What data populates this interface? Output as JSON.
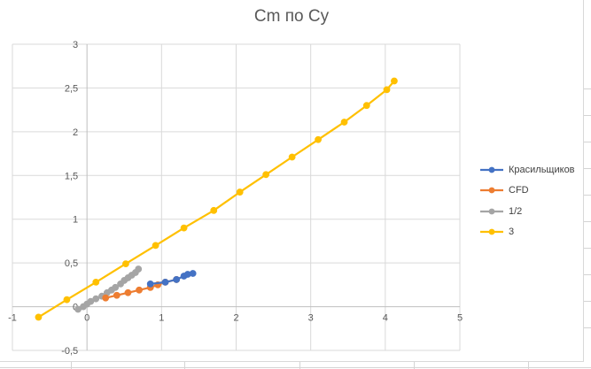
{
  "chart_data": {
    "type": "scatter",
    "title": "Cm по Cy",
    "xlabel": "",
    "ylabel": "",
    "xlim": [
      -1,
      5
    ],
    "ylim": [
      -0.5,
      3
    ],
    "x_ticks": [
      -1,
      0,
      1,
      2,
      3,
      4,
      5
    ],
    "y_ticks": [
      -0.5,
      0,
      0.5,
      1,
      1.5,
      2,
      2.5,
      3
    ],
    "x_tick_labels": [
      "-1",
      "0",
      "1",
      "2",
      "3",
      "4",
      "5"
    ],
    "y_tick_labels": [
      "-0,5",
      "0",
      "0,5",
      "1",
      "1,5",
      "2",
      "2,5",
      "3"
    ],
    "grid": true,
    "legend_position": "right",
    "series": [
      {
        "name": "Красильщиков",
        "color": "#4472c4",
        "x": [
          0.85,
          1.05,
          1.2,
          1.3,
          1.35,
          1.42
        ],
        "y": [
          0.26,
          0.28,
          0.31,
          0.35,
          0.37,
          0.38
        ]
      },
      {
        "name": "CFD",
        "color": "#ed7d31",
        "x": [
          0.25,
          0.4,
          0.55,
          0.7,
          0.85,
          0.95,
          1.05,
          1.2
        ],
        "y": [
          0.1,
          0.13,
          0.16,
          0.19,
          0.22,
          0.25,
          0.28,
          0.31
        ]
      },
      {
        "name": "1/2",
        "color": "#a5a5a5",
        "x": [
          -0.12,
          -0.05,
          0.0,
          0.05,
          0.12,
          0.2,
          0.27,
          0.33,
          0.38,
          0.45,
          0.5,
          0.55,
          0.6,
          0.65,
          0.69
        ],
        "y": [
          -0.03,
          0.0,
          0.03,
          0.06,
          0.09,
          0.12,
          0.16,
          0.19,
          0.22,
          0.26,
          0.3,
          0.33,
          0.36,
          0.39,
          0.43
        ]
      },
      {
        "name": "3",
        "color": "#ffc000",
        "x": [
          -0.65,
          -0.27,
          0.12,
          0.52,
          0.92,
          1.3,
          1.7,
          2.05,
          2.4,
          2.75,
          3.1,
          3.45,
          3.75,
          4.02,
          4.12
        ],
        "y": [
          -0.12,
          0.08,
          0.28,
          0.49,
          0.7,
          0.9,
          1.1,
          1.31,
          1.51,
          1.71,
          1.91,
          2.11,
          2.3,
          2.48,
          2.58
        ]
      }
    ]
  }
}
